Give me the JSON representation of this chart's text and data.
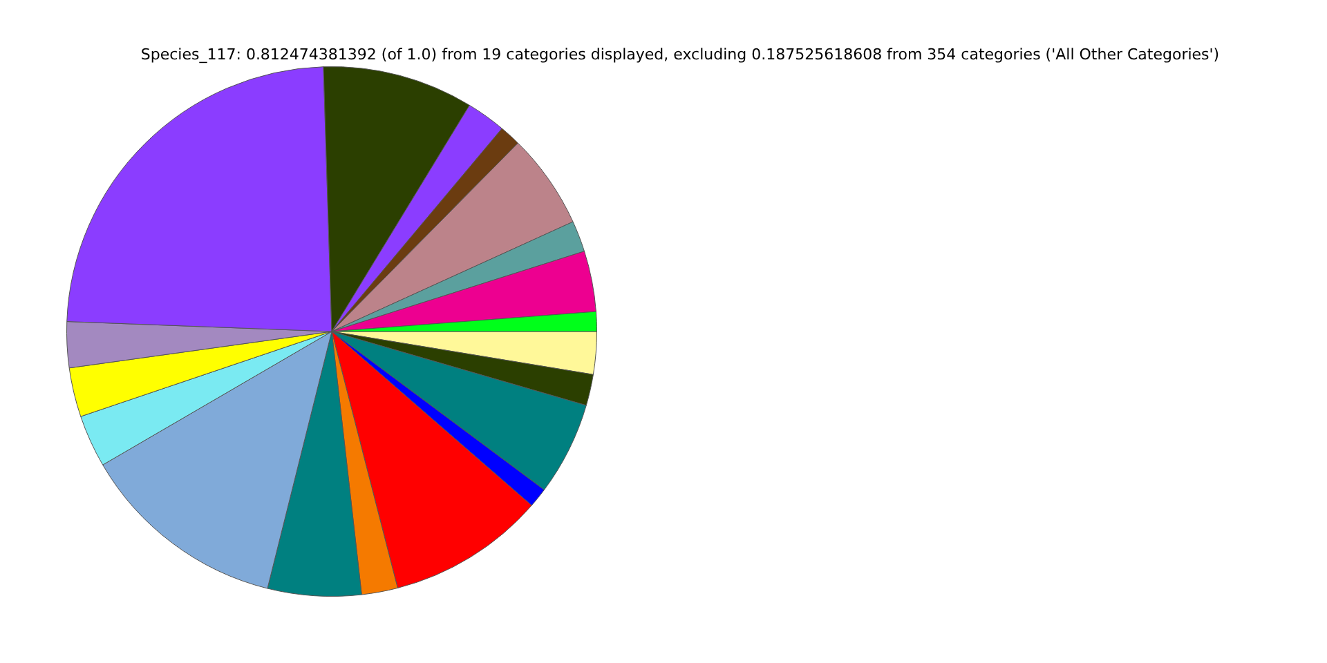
{
  "chart_data": {
    "type": "pie",
    "title": "Species_117: 0.812474381392 (of 1.0) from 19 categories displayed, excluding 0.187525618608 from 354 categories ('All Other Categories')",
    "categories": [
      null,
      null,
      null,
      null,
      null,
      null,
      null,
      null,
      null,
      null,
      null,
      null,
      null,
      null,
      null,
      null,
      null,
      null,
      null
    ],
    "values": [
      2.6,
      1.9,
      5.7,
      1.2,
      9.6,
      2.2,
      5.7,
      12.7,
      3.2,
      3.0,
      2.8,
      23.9,
      9.2,
      2.4,
      1.3,
      5.8,
      1.9,
      3.7,
      1.2
    ],
    "colors": [
      "#fff899",
      "#2b3f00",
      "#008080",
      "#0000ff",
      "#ff0000",
      "#f57a00",
      "#008080",
      "#80aad9",
      "#7aeaf2",
      "#ffff00",
      "#a389c0",
      "#8b3dff",
      "#2b3f00",
      "#8b3dff",
      "#6b3c10",
      "#bc838a",
      "#5ba09e",
      "#ed0090",
      "#00ff1a"
    ],
    "legend": false
  }
}
